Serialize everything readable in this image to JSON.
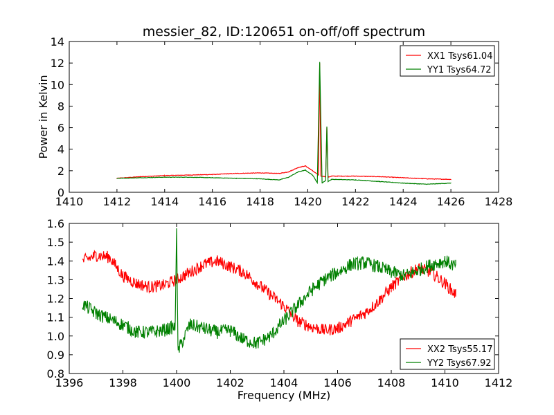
{
  "chart_data": [
    {
      "type": "line",
      "title": "messier_82, ID:120651 on-off/off spectrum",
      "xlabel": "",
      "ylabel": "Power in Kelvin",
      "xlim": [
        1410,
        1428
      ],
      "ylim": [
        0,
        14
      ],
      "xticks": [
        "1410",
        "1412",
        "1414",
        "1416",
        "1418",
        "1420",
        "1422",
        "1424",
        "1426",
        "1428"
      ],
      "yticks": [
        "0",
        "2",
        "4",
        "6",
        "8",
        "10",
        "12",
        "14"
      ],
      "legend_position": "upper-right",
      "series": [
        {
          "name": "XX1 Tsys61.04",
          "color": "#ff0000",
          "points": [
            [
              1412,
              1.3
            ],
            [
              1413,
              1.45
            ],
            [
              1414,
              1.55
            ],
            [
              1415,
              1.6
            ],
            [
              1416,
              1.65
            ],
            [
              1417,
              1.75
            ],
            [
              1418,
              1.8
            ],
            [
              1418.8,
              1.75
            ],
            [
              1419.2,
              1.9
            ],
            [
              1419.6,
              2.3
            ],
            [
              1419.9,
              2.45
            ],
            [
              1420.2,
              2.0
            ],
            [
              1420.45,
              1.6
            ],
            [
              1420.5,
              12.0
            ],
            [
              1420.55,
              1.5
            ],
            [
              1420.75,
              1.45
            ],
            [
              1420.8,
              6.0
            ],
            [
              1420.85,
              1.4
            ],
            [
              1421,
              1.5
            ],
            [
              1422,
              1.5
            ],
            [
              1423,
              1.45
            ],
            [
              1424,
              1.35
            ],
            [
              1425,
              1.25
            ],
            [
              1426,
              1.2
            ]
          ]
        },
        {
          "name": "YY1 Tsys64.72",
          "color": "#008000",
          "points": [
            [
              1412,
              1.3
            ],
            [
              1413,
              1.35
            ],
            [
              1414,
              1.4
            ],
            [
              1415,
              1.4
            ],
            [
              1416,
              1.35
            ],
            [
              1417,
              1.3
            ],
            [
              1418,
              1.25
            ],
            [
              1418.8,
              1.15
            ],
            [
              1419.2,
              1.4
            ],
            [
              1419.6,
              1.9
            ],
            [
              1419.9,
              2.05
            ],
            [
              1420.2,
              1.6
            ],
            [
              1420.4,
              0.9
            ],
            [
              1420.5,
              12.1
            ],
            [
              1420.6,
              0.85
            ],
            [
              1420.75,
              1.1
            ],
            [
              1420.8,
              6.1
            ],
            [
              1420.85,
              1.0
            ],
            [
              1421,
              1.2
            ],
            [
              1422,
              1.15
            ],
            [
              1423,
              1.0
            ],
            [
              1424,
              0.85
            ],
            [
              1425,
              0.75
            ],
            [
              1426,
              0.85
            ]
          ]
        }
      ]
    },
    {
      "type": "line",
      "title": "",
      "xlabel": "Frequency (MHz)",
      "ylabel": "",
      "xlim": [
        1396,
        1412
      ],
      "ylim": [
        0.8,
        1.6
      ],
      "xticks": [
        "1396",
        "1398",
        "1400",
        "1402",
        "1404",
        "1406",
        "1408",
        "1410",
        "1412"
      ],
      "yticks": [
        "0.8",
        "0.9",
        "1.0",
        "1.1",
        "1.2",
        "1.3",
        "1.4",
        "1.5",
        "1.6"
      ],
      "legend_position": "lower-right",
      "series": [
        {
          "name": "XX2 Tsys55.17",
          "color": "#ff0000",
          "points": [
            [
              1396.5,
              1.4
            ],
            [
              1397.0,
              1.43
            ],
            [
              1397.5,
              1.42
            ],
            [
              1398.0,
              1.32
            ],
            [
              1398.5,
              1.28
            ],
            [
              1399.0,
              1.26
            ],
            [
              1399.5,
              1.27
            ],
            [
              1400.0,
              1.3
            ],
            [
              1400.5,
              1.34
            ],
            [
              1401.0,
              1.38
            ],
            [
              1401.5,
              1.4
            ],
            [
              1402.0,
              1.37
            ],
            [
              1402.5,
              1.34
            ],
            [
              1403.0,
              1.28
            ],
            [
              1403.5,
              1.22
            ],
            [
              1404.0,
              1.16
            ],
            [
              1404.5,
              1.08
            ],
            [
              1405.0,
              1.05
            ],
            [
              1405.5,
              1.03
            ],
            [
              1406.0,
              1.04
            ],
            [
              1406.5,
              1.08
            ],
            [
              1407.0,
              1.12
            ],
            [
              1407.5,
              1.18
            ],
            [
              1408.0,
              1.26
            ],
            [
              1408.5,
              1.32
            ],
            [
              1409.0,
              1.36
            ],
            [
              1409.5,
              1.34
            ],
            [
              1410.0,
              1.28
            ],
            [
              1410.4,
              1.22
            ]
          ]
        },
        {
          "name": "YY2 Tsys67.92",
          "color": "#008000",
          "points": [
            [
              1396.5,
              1.17
            ],
            [
              1397.0,
              1.12
            ],
            [
              1397.5,
              1.09
            ],
            [
              1398.0,
              1.06
            ],
            [
              1398.5,
              1.02
            ],
            [
              1399.0,
              1.02
            ],
            [
              1399.5,
              1.03
            ],
            [
              1399.95,
              1.05
            ],
            [
              1400.0,
              1.6
            ],
            [
              1400.05,
              0.92
            ],
            [
              1400.5,
              1.06
            ],
            [
              1401.0,
              1.04
            ],
            [
              1401.5,
              1.02
            ],
            [
              1402.0,
              1.03
            ],
            [
              1402.5,
              0.98
            ],
            [
              1403.0,
              0.96
            ],
            [
              1403.5,
              1.0
            ],
            [
              1404.0,
              1.08
            ],
            [
              1404.5,
              1.16
            ],
            [
              1405.0,
              1.24
            ],
            [
              1405.5,
              1.3
            ],
            [
              1406.0,
              1.34
            ],
            [
              1406.5,
              1.38
            ],
            [
              1407.0,
              1.39
            ],
            [
              1407.5,
              1.37
            ],
            [
              1408.0,
              1.34
            ],
            [
              1408.5,
              1.32
            ],
            [
              1409.0,
              1.35
            ],
            [
              1409.5,
              1.38
            ],
            [
              1410.0,
              1.4
            ],
            [
              1410.4,
              1.37
            ]
          ]
        }
      ]
    }
  ]
}
